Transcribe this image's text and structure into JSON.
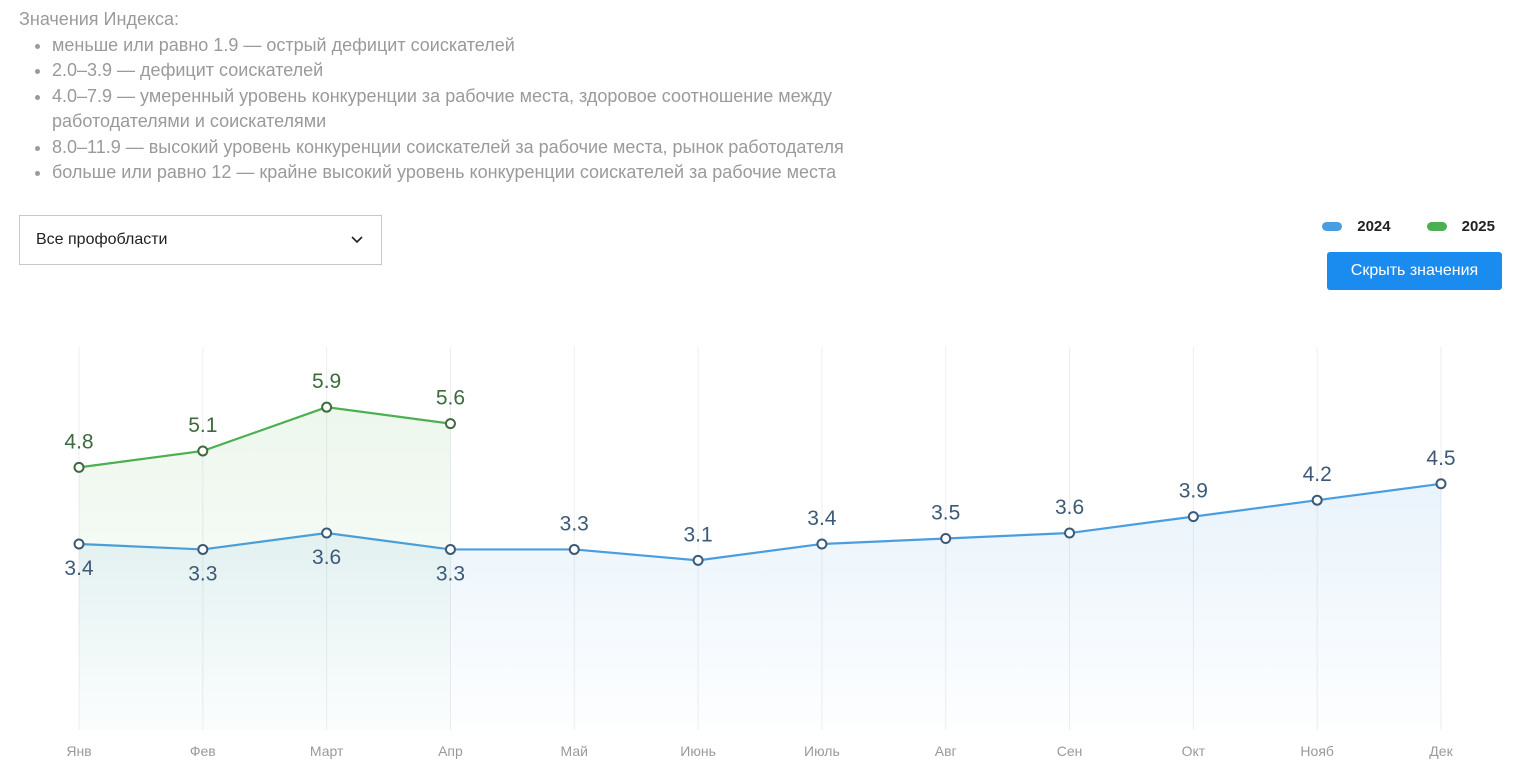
{
  "intro": {
    "title": "Значения Индекса:",
    "items": [
      "меньше или равно 1.9 — острый дефицит соискателей",
      "2.0–3.9 — дефицит соискателей",
      "4.0–7.9 — умеренный уровень конкуренции за рабочие места, здоровое соотношение между работодателями и соискателями",
      "8.0–11.9 — высокий уровень конкуренции соискателей за рабочие места, рынок работодателя",
      "больше или равно 12 — крайне высокий уровень конкуренции соискателей за рабочие места"
    ]
  },
  "filter": {
    "selected": "Все профобласти"
  },
  "button": "Скрыть значения",
  "chart_data": {
    "type": "line",
    "categories": [
      "Янв",
      "Фев",
      "Март",
      "Апр",
      "Май",
      "Июнь",
      "Июль",
      "Авг",
      "Сен",
      "Окт",
      "Нояб",
      "Дек"
    ],
    "series": [
      {
        "name": "2024",
        "color": "#4a9ee0",
        "values": [
          3.4,
          3.3,
          3.6,
          3.3,
          3.3,
          3.1,
          3.4,
          3.5,
          3.6,
          3.9,
          4.2,
          4.5
        ]
      },
      {
        "name": "2025",
        "color": "#4caf50",
        "values": [
          4.8,
          5.1,
          5.9,
          5.6,
          null,
          null,
          null,
          null,
          null,
          null,
          null,
          null
        ]
      }
    ],
    "ylim": [
      0,
      7
    ],
    "grid": true,
    "legend": "top-right"
  }
}
